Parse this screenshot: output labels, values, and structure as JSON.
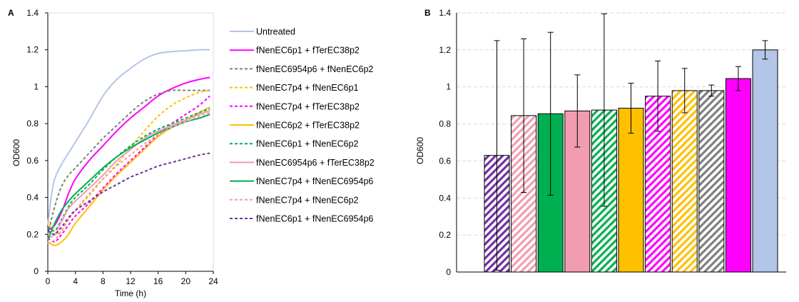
{
  "colors": {
    "untreated": "#b4c6e7",
    "magenta": "#ff00ff",
    "gray": "#7f7f7f",
    "orange": "#ffc000",
    "green": "#00b050",
    "pink": "#f19cb1",
    "purple": "#7030a0",
    "gridline": "#d9d9d9",
    "axis": "#000000"
  },
  "chart_data": [
    {
      "panel_label": "A",
      "type": "line",
      "xlabel": "Time (h)",
      "ylabel": "OD600",
      "xlim": [
        0,
        24
      ],
      "ylim": [
        0,
        1.4
      ],
      "xticks": [
        "0",
        "4",
        "8",
        "12",
        "16",
        "20",
        "24"
      ],
      "yticks": [
        "0",
        "0.2",
        "0.4",
        "0.6",
        "0.8",
        "1",
        "1.2",
        "1.4"
      ],
      "grid": false,
      "legend": "right",
      "series": [
        {
          "name": "Untreated",
          "color": "#b4c6e7",
          "dash": "solid",
          "x": [
            0,
            0.5,
            1,
            2,
            3,
            4,
            6,
            8,
            10,
            12,
            14,
            16,
            18,
            20,
            22,
            23.5
          ],
          "y": [
            0.25,
            0.4,
            0.5,
            0.58,
            0.64,
            0.7,
            0.82,
            0.95,
            1.04,
            1.1,
            1.15,
            1.18,
            1.19,
            1.195,
            1.2,
            1.2
          ]
        },
        {
          "name": "fNenEC6p1 + fTerEC38p2",
          "color": "#ff00ff",
          "dash": "solid",
          "x": [
            0,
            1,
            2,
            3,
            4,
            6,
            8,
            10,
            12,
            14,
            16,
            18,
            20,
            22,
            23.5
          ],
          "y": [
            0.22,
            0.25,
            0.32,
            0.42,
            0.5,
            0.6,
            0.68,
            0.76,
            0.83,
            0.89,
            0.95,
            0.99,
            1.02,
            1.04,
            1.05
          ]
        },
        {
          "name": "fNenEC6954p6 + fNenEC6p2",
          "color": "#7f7f7f",
          "dash": "dash",
          "x": [
            0,
            1,
            2,
            3,
            4,
            6,
            8,
            10,
            12,
            14,
            16,
            18,
            20,
            22,
            23.5
          ],
          "y": [
            0.2,
            0.35,
            0.46,
            0.52,
            0.56,
            0.64,
            0.72,
            0.79,
            0.86,
            0.92,
            0.96,
            0.98,
            0.98,
            0.98,
            0.98
          ]
        },
        {
          "name": "fNenEC7p4 + fNenEC6p1",
          "color": "#ffc000",
          "dash": "dash",
          "x": [
            0,
            1,
            2,
            3,
            4,
            6,
            8,
            10,
            12,
            14,
            16,
            18,
            20,
            22,
            23.5
          ],
          "y": [
            0.28,
            0.2,
            0.22,
            0.28,
            0.33,
            0.41,
            0.5,
            0.58,
            0.67,
            0.76,
            0.84,
            0.9,
            0.94,
            0.97,
            0.98
          ]
        },
        {
          "name": "fNenEC7p4 + fTerEC38p2",
          "color": "#ff00ff",
          "dash": "dash",
          "x": [
            0,
            1,
            2,
            3,
            4,
            6,
            8,
            10,
            12,
            14,
            16,
            18,
            20,
            22,
            23.5
          ],
          "y": [
            0.18,
            0.16,
            0.2,
            0.25,
            0.3,
            0.37,
            0.45,
            0.53,
            0.6,
            0.67,
            0.74,
            0.8,
            0.85,
            0.9,
            0.95
          ]
        },
        {
          "name": "fNenEC6p2 + fTerEC38p2",
          "color": "#ffc000",
          "dash": "solid",
          "x": [
            0,
            1,
            2,
            3,
            4,
            6,
            8,
            10,
            12,
            14,
            16,
            18,
            20,
            22,
            23.5
          ],
          "y": [
            0.16,
            0.14,
            0.16,
            0.2,
            0.26,
            0.35,
            0.44,
            0.52,
            0.59,
            0.66,
            0.73,
            0.78,
            0.82,
            0.86,
            0.89
          ]
        },
        {
          "name": "fNenEC6p1 + fNenEC6p2",
          "color": "#00b050",
          "dash": "dash",
          "x": [
            0,
            1,
            2,
            3,
            4,
            6,
            8,
            10,
            12,
            14,
            16,
            18,
            20,
            22,
            23.5
          ],
          "y": [
            0.24,
            0.22,
            0.28,
            0.35,
            0.4,
            0.47,
            0.55,
            0.62,
            0.68,
            0.73,
            0.77,
            0.8,
            0.83,
            0.86,
            0.88
          ]
        },
        {
          "name": "fNenEC6954p6 + fTerEC38p2",
          "color": "#f19cb1",
          "dash": "solid",
          "x": [
            0,
            1,
            2,
            3,
            4,
            6,
            8,
            10,
            12,
            14,
            16,
            18,
            20,
            22,
            23.5
          ],
          "y": [
            0.18,
            0.2,
            0.27,
            0.34,
            0.38,
            0.45,
            0.52,
            0.6,
            0.66,
            0.72,
            0.76,
            0.79,
            0.82,
            0.85,
            0.87
          ]
        },
        {
          "name": "fNenEC7p4 + fNenEC6954p6",
          "color": "#00b050",
          "dash": "solid",
          "x": [
            0,
            1,
            2,
            3,
            4,
            6,
            8,
            10,
            12,
            14,
            16,
            18,
            20,
            22,
            23.5
          ],
          "y": [
            0.17,
            0.26,
            0.33,
            0.38,
            0.42,
            0.49,
            0.56,
            0.62,
            0.67,
            0.71,
            0.75,
            0.78,
            0.81,
            0.83,
            0.85
          ]
        },
        {
          "name": "fNenEC7p4 + fNenEC6p2",
          "color": "#f19cb1",
          "dash": "dash",
          "x": [
            0,
            1,
            2,
            3,
            4,
            6,
            8,
            10,
            12,
            14,
            16,
            18,
            20,
            22,
            23.5
          ],
          "y": [
            0.15,
            0.17,
            0.22,
            0.28,
            0.33,
            0.42,
            0.5,
            0.57,
            0.63,
            0.69,
            0.74,
            0.78,
            0.81,
            0.84,
            0.86
          ]
        },
        {
          "name": "fNenEC6p1 + fNenEC6954p6",
          "color": "#7030a0",
          "dash": "dash",
          "x": [
            0,
            1,
            2,
            3,
            4,
            6,
            8,
            10,
            12,
            14,
            16,
            18,
            20,
            22,
            23.5
          ],
          "y": [
            0.22,
            0.2,
            0.24,
            0.29,
            0.33,
            0.38,
            0.43,
            0.47,
            0.51,
            0.54,
            0.57,
            0.59,
            0.61,
            0.63,
            0.64
          ]
        }
      ]
    },
    {
      "panel_label": "B",
      "type": "bar",
      "ylabel": "OD600",
      "ylim": [
        0,
        1.4
      ],
      "yticks": [
        "0",
        "0.2",
        "0.4",
        "0.6",
        "0.8",
        "1",
        "1.2",
        "1.4"
      ],
      "grid": true,
      "bars": [
        {
          "value": 0.63,
          "error": 0.62,
          "color": "#7030a0",
          "pattern": "hatch"
        },
        {
          "value": 0.845,
          "error": 0.415,
          "color": "#f19cb1",
          "pattern": "hatch"
        },
        {
          "value": 0.855,
          "error": 0.44,
          "color": "#00b050",
          "pattern": "solid"
        },
        {
          "value": 0.87,
          "error": 0.195,
          "color": "#f19cb1",
          "pattern": "solid"
        },
        {
          "value": 0.875,
          "error": 0.52,
          "color": "#00b050",
          "pattern": "hatch"
        },
        {
          "value": 0.885,
          "error": 0.135,
          "color": "#ffc000",
          "pattern": "solid"
        },
        {
          "value": 0.95,
          "error": 0.19,
          "color": "#ff00ff",
          "pattern": "hatch"
        },
        {
          "value": 0.98,
          "error": 0.12,
          "color": "#ffc000",
          "pattern": "hatch"
        },
        {
          "value": 0.98,
          "error": 0.03,
          "color": "#7f7f7f",
          "pattern": "hatch"
        },
        {
          "value": 1.045,
          "error": 0.065,
          "color": "#ff00ff",
          "pattern": "solid"
        },
        {
          "value": 1.2,
          "error": 0.05,
          "color": "#b4c6e7",
          "pattern": "solid"
        }
      ]
    }
  ]
}
